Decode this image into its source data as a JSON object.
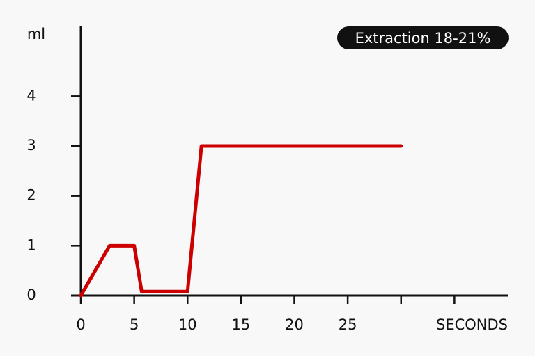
{
  "chart_data": {
    "type": "line",
    "x_label": "SECONDS",
    "y_label": "ml",
    "annotation": "Extraction 18-21%",
    "x": [
      0,
      2.7,
      5,
      5.7,
      10,
      11.3,
      30
    ],
    "series": [
      {
        "color": "#cc0000",
        "values": [
          0,
          1,
          1,
          0.08,
          0.08,
          3,
          3
        ]
      }
    ],
    "xlim": [
      0,
      40
    ],
    "ylim": [
      0,
      5.4
    ],
    "xticks": [
      0,
      5,
      10,
      15,
      20,
      25,
      {
        "value": 30,
        "label": null
      },
      {
        "value": 35,
        "label": null
      }
    ],
    "yticks": [
      0,
      1,
      2,
      3,
      4
    ],
    "grid": false
  }
}
